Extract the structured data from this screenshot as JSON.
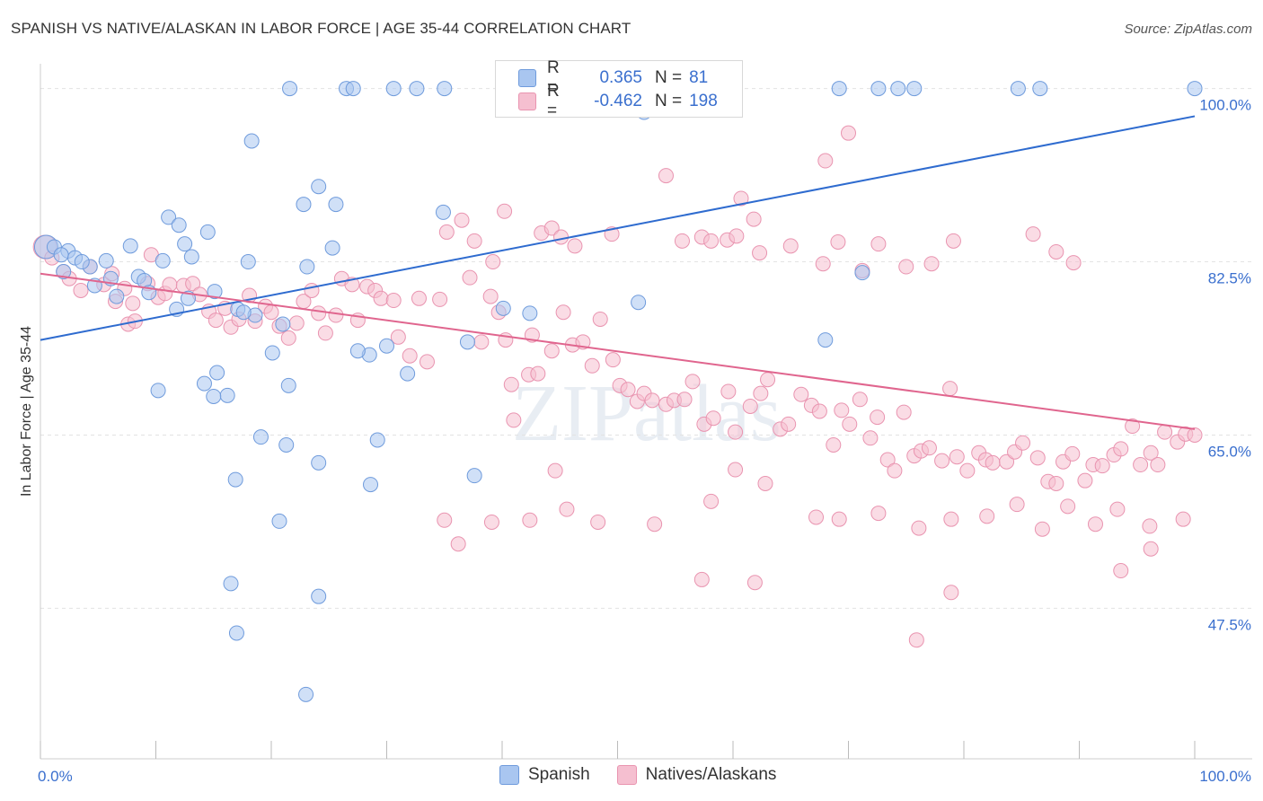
{
  "title": "SPANISH VS NATIVE/ALASKAN IN LABOR FORCE | AGE 35-44 CORRELATION CHART",
  "source": "Source: ZipAtlas.com",
  "watermark": "ZIPatlas",
  "legend": {
    "spanish": {
      "r_label": "R =",
      "r_value": "0.365",
      "n_label": "N =",
      "n_value": "81"
    },
    "natives": {
      "r_label": "R =",
      "r_value": "-0.462",
      "n_label": "N =",
      "n_value": "198"
    }
  },
  "bottom_legend": [
    "Spanish",
    "Natives/Alaskans"
  ],
  "colors": {
    "spanish_fill": "#a9c6f0",
    "spanish_stroke": "#6f9bdc",
    "spanish_line": "#2e6bcf",
    "natives_fill": "#f5bfd0",
    "natives_stroke": "#e994b0",
    "natives_line": "#e0658e",
    "tick_label": "#3a6fce",
    "grid": "#e3e3e3"
  },
  "chart_data": {
    "type": "scatter",
    "title": "SPANISH VS NATIVE/ALASKAN IN LABOR FORCE | AGE 35-44 CORRELATION CHART",
    "xlabel": "",
    "ylabel": "In Labor Force | Age 35-44",
    "xlim": [
      0,
      100
    ],
    "ylim": [
      32.3,
      102.5
    ],
    "x_tick_labels": [
      "0.0%",
      "100.0%"
    ],
    "y_ticks": [
      47.5,
      65.0,
      82.5,
      100.0
    ],
    "y_tick_labels": [
      "47.5%",
      "65.0%",
      "82.5%",
      "100.0%"
    ],
    "series": [
      {
        "name": "Spanish",
        "r": 0.365,
        "n": 81,
        "trend": {
          "x": [
            0,
            100
          ],
          "y": [
            74.6,
            97.2
          ]
        },
        "points": [
          [
            0.5,
            84.0
          ],
          [
            1.2,
            84.0
          ],
          [
            2.4,
            83.6
          ],
          [
            1.8,
            83.2
          ],
          [
            3.0,
            82.9
          ],
          [
            5.7,
            82.6
          ],
          [
            4.3,
            82.0
          ],
          [
            6.1,
            80.8
          ],
          [
            8.5,
            81.0
          ],
          [
            10.6,
            82.6
          ],
          [
            3.6,
            82.5
          ],
          [
            4.7,
            80.1
          ],
          [
            9.0,
            80.6
          ],
          [
            9.4,
            79.4
          ],
          [
            6.6,
            79.0
          ],
          [
            12.5,
            84.3
          ],
          [
            13.1,
            83.0
          ],
          [
            7.8,
            84.1
          ],
          [
            11.1,
            87.0
          ],
          [
            12.0,
            86.2
          ],
          [
            11.8,
            77.7
          ],
          [
            15.1,
            79.5
          ],
          [
            17.1,
            77.7
          ],
          [
            14.5,
            85.5
          ],
          [
            18.0,
            82.5
          ],
          [
            18.6,
            77.1
          ],
          [
            17.6,
            77.4
          ],
          [
            15.3,
            71.3
          ],
          [
            14.2,
            70.2
          ],
          [
            16.2,
            69.0
          ],
          [
            15.0,
            68.9
          ],
          [
            10.2,
            69.5
          ],
          [
            21.0,
            76.2
          ],
          [
            20.1,
            73.3
          ],
          [
            21.5,
            70.0
          ],
          [
            18.3,
            94.7
          ],
          [
            22.8,
            88.3
          ],
          [
            23.1,
            82.0
          ],
          [
            24.1,
            90.1
          ],
          [
            25.6,
            88.3
          ],
          [
            25.3,
            83.9
          ],
          [
            28.5,
            73.1
          ],
          [
            31.8,
            71.2
          ],
          [
            34.9,
            87.5
          ],
          [
            37.0,
            74.4
          ],
          [
            40.1,
            77.8
          ],
          [
            42.4,
            77.3
          ],
          [
            51.8,
            78.4
          ],
          [
            52.3,
            97.6
          ],
          [
            68.0,
            74.6
          ],
          [
            71.2,
            81.4
          ],
          [
            21.6,
            100.0
          ],
          [
            26.5,
            100.0
          ],
          [
            27.1,
            100.0
          ],
          [
            30.6,
            100.0
          ],
          [
            32.6,
            100.0
          ],
          [
            35.0,
            100.0
          ],
          [
            55.6,
            100.0
          ],
          [
            69.2,
            100.0
          ],
          [
            72.6,
            100.0
          ],
          [
            74.3,
            100.0
          ],
          [
            75.7,
            100.0
          ],
          [
            84.7,
            100.0
          ],
          [
            86.6,
            100.0
          ],
          [
            100.0,
            100.0
          ],
          [
            19.1,
            64.8
          ],
          [
            21.3,
            64.0
          ],
          [
            24.1,
            62.2
          ],
          [
            29.2,
            64.5
          ],
          [
            28.6,
            60.0
          ],
          [
            16.9,
            60.5
          ],
          [
            20.7,
            56.3
          ],
          [
            16.5,
            50.0
          ],
          [
            24.1,
            48.7
          ],
          [
            17.0,
            45.0
          ],
          [
            23.0,
            38.8
          ],
          [
            37.6,
            60.9
          ],
          [
            12.8,
            78.8
          ],
          [
            2.0,
            81.5
          ],
          [
            27.5,
            73.5
          ],
          [
            30.0,
            74.0
          ]
        ]
      },
      {
        "name": "Natives/Alaskans",
        "r": -0.462,
        "n": 198,
        "trend": {
          "x": [
            0,
            100
          ],
          "y": [
            81.3,
            65.6
          ]
        },
        "points": [
          [
            0.4,
            84.0
          ],
          [
            1.0,
            82.9
          ],
          [
            2.0,
            81.5
          ],
          [
            2.5,
            80.8
          ],
          [
            3.5,
            79.6
          ],
          [
            4.3,
            82.0
          ],
          [
            5.5,
            80.2
          ],
          [
            6.2,
            81.3
          ],
          [
            7.3,
            79.8
          ],
          [
            8.0,
            78.3
          ],
          [
            6.5,
            78.5
          ],
          [
            7.6,
            76.2
          ],
          [
            8.2,
            76.5
          ],
          [
            9.3,
            80.3
          ],
          [
            9.6,
            83.2
          ],
          [
            10.2,
            78.9
          ],
          [
            10.8,
            79.3
          ],
          [
            11.2,
            80.2
          ],
          [
            12.4,
            80.1
          ],
          [
            13.2,
            80.3
          ],
          [
            13.8,
            79.2
          ],
          [
            14.6,
            77.5
          ],
          [
            15.2,
            76.6
          ],
          [
            16.0,
            77.8
          ],
          [
            16.5,
            75.9
          ],
          [
            17.2,
            76.7
          ],
          [
            18.1,
            79.1
          ],
          [
            18.6,
            76.5
          ],
          [
            19.5,
            78.0
          ],
          [
            20.0,
            77.4
          ],
          [
            20.7,
            76.0
          ],
          [
            21.5,
            74.8
          ],
          [
            22.2,
            76.3
          ],
          [
            22.8,
            78.5
          ],
          [
            23.5,
            79.6
          ],
          [
            24.1,
            77.3
          ],
          [
            24.7,
            75.3
          ],
          [
            25.6,
            77.1
          ],
          [
            26.1,
            80.8
          ],
          [
            27.0,
            80.2
          ],
          [
            27.5,
            76.6
          ],
          [
            28.3,
            80.0
          ],
          [
            29.0,
            79.6
          ],
          [
            29.5,
            78.8
          ],
          [
            30.6,
            78.6
          ],
          [
            31.0,
            74.9
          ],
          [
            32.0,
            73.0
          ],
          [
            32.8,
            78.8
          ],
          [
            33.5,
            72.4
          ],
          [
            34.6,
            78.7
          ],
          [
            35.2,
            85.5
          ],
          [
            36.5,
            86.7
          ],
          [
            37.2,
            80.9
          ],
          [
            38.2,
            74.4
          ],
          [
            39.0,
            79.0
          ],
          [
            39.7,
            77.4
          ],
          [
            40.3,
            74.6
          ],
          [
            40.8,
            70.1
          ],
          [
            41.0,
            66.5
          ],
          [
            42.3,
            71.1
          ],
          [
            42.6,
            75.1
          ],
          [
            43.1,
            71.2
          ],
          [
            44.3,
            73.5
          ],
          [
            45.3,
            77.4
          ],
          [
            46.1,
            74.1
          ],
          [
            47.0,
            74.4
          ],
          [
            47.8,
            72.0
          ],
          [
            48.5,
            76.7
          ],
          [
            49.6,
            72.6
          ],
          [
            50.2,
            70.0
          ],
          [
            50.9,
            69.6
          ],
          [
            51.7,
            68.4
          ],
          [
            52.3,
            69.2
          ],
          [
            53.0,
            68.5
          ],
          [
            54.2,
            68.1
          ],
          [
            54.9,
            68.5
          ],
          [
            55.8,
            68.6
          ],
          [
            56.5,
            70.4
          ],
          [
            57.5,
            66.1
          ],
          [
            58.3,
            66.7
          ],
          [
            59.6,
            69.4
          ],
          [
            60.2,
            65.3
          ],
          [
            61.5,
            67.9
          ],
          [
            62.4,
            69.2
          ],
          [
            63.0,
            70.6
          ],
          [
            64.1,
            65.6
          ],
          [
            64.8,
            66.1
          ],
          [
            65.9,
            69.1
          ],
          [
            66.8,
            68.0
          ],
          [
            67.5,
            67.4
          ],
          [
            68.7,
            64.0
          ],
          [
            69.4,
            67.5
          ],
          [
            70.1,
            66.1
          ],
          [
            71.0,
            68.6
          ],
          [
            71.9,
            64.7
          ],
          [
            72.5,
            66.8
          ],
          [
            73.4,
            62.5
          ],
          [
            74.0,
            61.4
          ],
          [
            74.8,
            67.3
          ],
          [
            75.7,
            62.9
          ],
          [
            76.3,
            63.4
          ],
          [
            77.0,
            63.7
          ],
          [
            78.1,
            62.4
          ],
          [
            78.8,
            69.7
          ],
          [
            79.4,
            62.8
          ],
          [
            80.3,
            61.4
          ],
          [
            81.3,
            63.2
          ],
          [
            81.9,
            62.5
          ],
          [
            82.5,
            62.2
          ],
          [
            83.7,
            62.3
          ],
          [
            84.4,
            63.3
          ],
          [
            85.1,
            64.2
          ],
          [
            86.4,
            62.7
          ],
          [
            87.3,
            60.3
          ],
          [
            88.0,
            60.1
          ],
          [
            88.6,
            62.3
          ],
          [
            89.4,
            63.1
          ],
          [
            90.5,
            60.4
          ],
          [
            91.2,
            62.0
          ],
          [
            92.0,
            61.9
          ],
          [
            93.0,
            63.0
          ],
          [
            93.6,
            63.6
          ],
          [
            94.6,
            65.9
          ],
          [
            95.3,
            62.0
          ],
          [
            96.2,
            63.2
          ],
          [
            96.8,
            62.0
          ],
          [
            97.4,
            65.3
          ],
          [
            98.5,
            64.3
          ],
          [
            99.2,
            65.1
          ],
          [
            100.0,
            65.0
          ],
          [
            40.2,
            87.6
          ],
          [
            37.6,
            84.6
          ],
          [
            39.2,
            82.5
          ],
          [
            43.4,
            85.4
          ],
          [
            44.3,
            85.9
          ],
          [
            45.1,
            85.0
          ],
          [
            46.3,
            84.1
          ],
          [
            49.5,
            85.3
          ],
          [
            55.6,
            84.6
          ],
          [
            57.3,
            85.0
          ],
          [
            58.1,
            84.6
          ],
          [
            59.5,
            84.7
          ],
          [
            60.3,
            85.1
          ],
          [
            62.3,
            83.4
          ],
          [
            65.0,
            84.1
          ],
          [
            67.8,
            82.3
          ],
          [
            69.1,
            84.5
          ],
          [
            71.2,
            81.6
          ],
          [
            72.6,
            84.3
          ],
          [
            75.0,
            82.0
          ],
          [
            77.2,
            82.3
          ],
          [
            79.1,
            84.6
          ],
          [
            86.0,
            85.3
          ],
          [
            88.0,
            83.5
          ],
          [
            89.5,
            82.4
          ],
          [
            60.7,
            88.9
          ],
          [
            68.0,
            92.7
          ],
          [
            70.0,
            95.5
          ],
          [
            54.2,
            91.2
          ],
          [
            61.8,
            86.8
          ],
          [
            35.0,
            56.4
          ],
          [
            36.2,
            54.0
          ],
          [
            39.1,
            56.2
          ],
          [
            42.4,
            56.4
          ],
          [
            45.6,
            57.5
          ],
          [
            48.3,
            56.2
          ],
          [
            53.2,
            56.0
          ],
          [
            58.1,
            58.3
          ],
          [
            60.2,
            61.5
          ],
          [
            62.8,
            60.1
          ],
          [
            67.2,
            56.7
          ],
          [
            69.2,
            56.5
          ],
          [
            72.6,
            57.1
          ],
          [
            76.1,
            55.6
          ],
          [
            78.9,
            56.5
          ],
          [
            82.0,
            56.8
          ],
          [
            84.6,
            58.0
          ],
          [
            86.8,
            55.5
          ],
          [
            89.0,
            57.8
          ],
          [
            91.4,
            56.0
          ],
          [
            93.3,
            57.5
          ],
          [
            96.1,
            55.8
          ],
          [
            99.0,
            56.5
          ],
          [
            57.3,
            50.4
          ],
          [
            61.9,
            50.1
          ],
          [
            78.9,
            49.1
          ],
          [
            93.6,
            51.3
          ],
          [
            96.2,
            53.5
          ],
          [
            75.9,
            44.3
          ],
          [
            44.6,
            61.4
          ]
        ]
      }
    ]
  }
}
